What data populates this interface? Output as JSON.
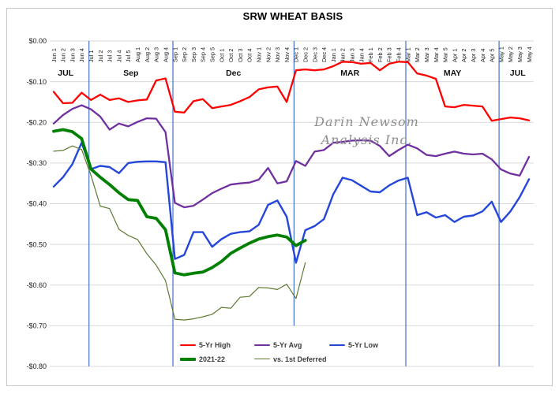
{
  "page": {
    "background": "#ffffff",
    "border_color": "#c9c9c9"
  },
  "chart_data": {
    "type": "line",
    "title": "SRW WHEAT BASIS",
    "watermark": [
      "Darin Newsom",
      "Analysis Inc."
    ],
    "ylim": [
      -0.8,
      0.0
    ],
    "grid": true,
    "gridline_color": "#d9d9d9",
    "vertical_line_color": "#4472C4",
    "legend_position": "bottom-inside",
    "y_ticks": [
      {
        "label": "$0.00",
        "value": 0
      },
      {
        "label": "-$0.10",
        "value": -0.1
      },
      {
        "label": "-$0.20",
        "value": -0.2
      },
      {
        "label": "-$0.30",
        "value": -0.3
      },
      {
        "label": "-$0.40",
        "value": -0.4
      },
      {
        "label": "-$0.50",
        "value": -0.5
      },
      {
        "label": "-$0.60",
        "value": -0.6
      },
      {
        "label": "-$0.70",
        "value": -0.7
      },
      {
        "label": "-$0.80",
        "value": -0.8
      }
    ],
    "x_tick_labels": [
      "Jun 1",
      "Jun 2",
      "Jun 3",
      "Jun 4",
      "Jul 1",
      "Jul 2",
      "Jul 3",
      "Jul 4",
      "Jul 5",
      "Aug 1",
      "Aug 2",
      "Aug 3",
      "Aug 4",
      "Sep 1",
      "Sep 2",
      "Sep 3",
      "Sep 4",
      "Sep 5",
      "Oct 1",
      "Oct 2",
      "Oct 3",
      "Oct 4",
      "Nov 1",
      "Nov 2",
      "Nov 3",
      "Nov 4",
      "Dec 1",
      "Dec 2",
      "Dec 3",
      "Dec 4",
      "Jan 1",
      "Jan 2",
      "Jan 3",
      "Jan 4",
      "Feb 1",
      "Feb 2",
      "Feb 3",
      "Feb 4",
      "Mar 1",
      "Mar 2",
      "Mar 3",
      "Mar 4",
      "Mar 5",
      "Apr 1",
      "Apr 2",
      "Apr 3",
      "Apr 4",
      "Apr 5",
      "May 1",
      "May 2",
      "May 3",
      "May 4"
    ],
    "month_labels": [
      {
        "label": "JUL",
        "center_index": 1.5
      },
      {
        "label": "Sep",
        "center_index": 8.5
      },
      {
        "label": "Dec",
        "center_index": 19.5
      },
      {
        "label": "MAR",
        "center_index": 32
      },
      {
        "label": "MAY",
        "center_index": 43
      },
      {
        "label": "JUL",
        "center_index": 50
      }
    ],
    "vertical_lines": [
      {
        "at": "Jul 1",
        "index": 4,
        "to": -0.8
      },
      {
        "at": "Sep 1",
        "index": 13,
        "to": -0.8
      },
      {
        "at": "Dec 1",
        "index": 26,
        "to": -0.7
      },
      {
        "at": "Mar 1",
        "index": 38,
        "to": -0.8
      },
      {
        "at": "May 1",
        "index": 48,
        "to": -0.8
      }
    ],
    "series": [
      {
        "name": "5-Yr High",
        "color": "#FF0000",
        "width": 2.3,
        "values": [
          -0.125,
          -0.153,
          -0.152,
          -0.127,
          -0.145,
          -0.132,
          -0.145,
          -0.141,
          -0.15,
          -0.146,
          -0.144,
          -0.097,
          -0.092,
          -0.174,
          -0.176,
          -0.148,
          -0.143,
          -0.165,
          -0.161,
          -0.157,
          -0.148,
          -0.138,
          -0.119,
          -0.114,
          -0.112,
          -0.15,
          -0.072,
          -0.07,
          -0.072,
          -0.07,
          -0.062,
          -0.051,
          -0.052,
          -0.056,
          -0.054,
          -0.072,
          -0.056,
          -0.051,
          -0.052,
          -0.08,
          -0.085,
          -0.093,
          -0.161,
          -0.163,
          -0.157,
          -0.159,
          -0.161,
          -0.196,
          -0.192,
          -0.188,
          -0.19,
          -0.195
        ]
      },
      {
        "name": "5-Yr Avg",
        "color": "#7030A0",
        "width": 2.3,
        "values": [
          -0.203,
          -0.182,
          -0.167,
          -0.158,
          -0.168,
          -0.186,
          -0.218,
          -0.203,
          -0.21,
          -0.199,
          -0.19,
          -0.191,
          -0.224,
          -0.398,
          -0.409,
          -0.405,
          -0.39,
          -0.374,
          -0.363,
          -0.353,
          -0.35,
          -0.348,
          -0.341,
          -0.312,
          -0.35,
          -0.345,
          -0.295,
          -0.307,
          -0.272,
          -0.268,
          -0.25,
          -0.248,
          -0.245,
          -0.244,
          -0.245,
          -0.258,
          -0.283,
          -0.268,
          -0.255,
          -0.264,
          -0.28,
          -0.283,
          -0.277,
          -0.272,
          -0.277,
          -0.279,
          -0.277,
          -0.291,
          -0.316,
          -0.326,
          -0.331,
          -0.285
        ]
      },
      {
        "name": "5-Yr Low",
        "color": "#2447D9",
        "width": 2.4,
        "values": [
          -0.358,
          -0.335,
          -0.303,
          -0.25,
          -0.315,
          -0.307,
          -0.31,
          -0.325,
          -0.3,
          -0.297,
          -0.296,
          -0.296,
          -0.298,
          -0.536,
          -0.526,
          -0.47,
          -0.47,
          -0.506,
          -0.487,
          -0.474,
          -0.47,
          -0.468,
          -0.452,
          -0.403,
          -0.392,
          -0.432,
          -0.545,
          -0.465,
          -0.455,
          -0.438,
          -0.377,
          -0.336,
          -0.342,
          -0.356,
          -0.37,
          -0.372,
          -0.355,
          -0.343,
          -0.336,
          -0.428,
          -0.421,
          -0.434,
          -0.428,
          -0.445,
          -0.432,
          -0.429,
          -0.419,
          -0.395,
          -0.445,
          -0.419,
          -0.384,
          -0.34
        ]
      },
      {
        "name": "2021-22",
        "color": "#008000",
        "width": 3.8,
        "values": [
          -0.222,
          -0.218,
          -0.223,
          -0.24,
          -0.315,
          -0.335,
          -0.353,
          -0.373,
          -0.39,
          -0.392,
          -0.432,
          -0.436,
          -0.464,
          -0.57,
          -0.575,
          -0.571,
          -0.568,
          -0.557,
          -0.542,
          -0.522,
          -0.509,
          -0.497,
          -0.487,
          -0.481,
          -0.477,
          -0.482,
          -0.503,
          -0.49
        ]
      },
      {
        "name": "vs. 1st Deferred",
        "color": "#5E7932",
        "width": 1.2,
        "values": [
          -0.271,
          -0.269,
          -0.258,
          -0.267,
          -0.33,
          -0.406,
          -0.412,
          -0.463,
          -0.478,
          -0.488,
          -0.523,
          -0.551,
          -0.589,
          -0.684,
          -0.686,
          -0.683,
          -0.678,
          -0.672,
          -0.655,
          -0.657,
          -0.63,
          -0.628,
          -0.606,
          -0.607,
          -0.611,
          -0.598,
          -0.633,
          -0.545
        ]
      }
    ]
  },
  "legend": {
    "rows": [
      [
        "5-Yr High",
        "5-Yr Avg",
        "5-Yr Low"
      ],
      [
        "2021-22",
        "vs. 1st Deferred"
      ]
    ]
  }
}
